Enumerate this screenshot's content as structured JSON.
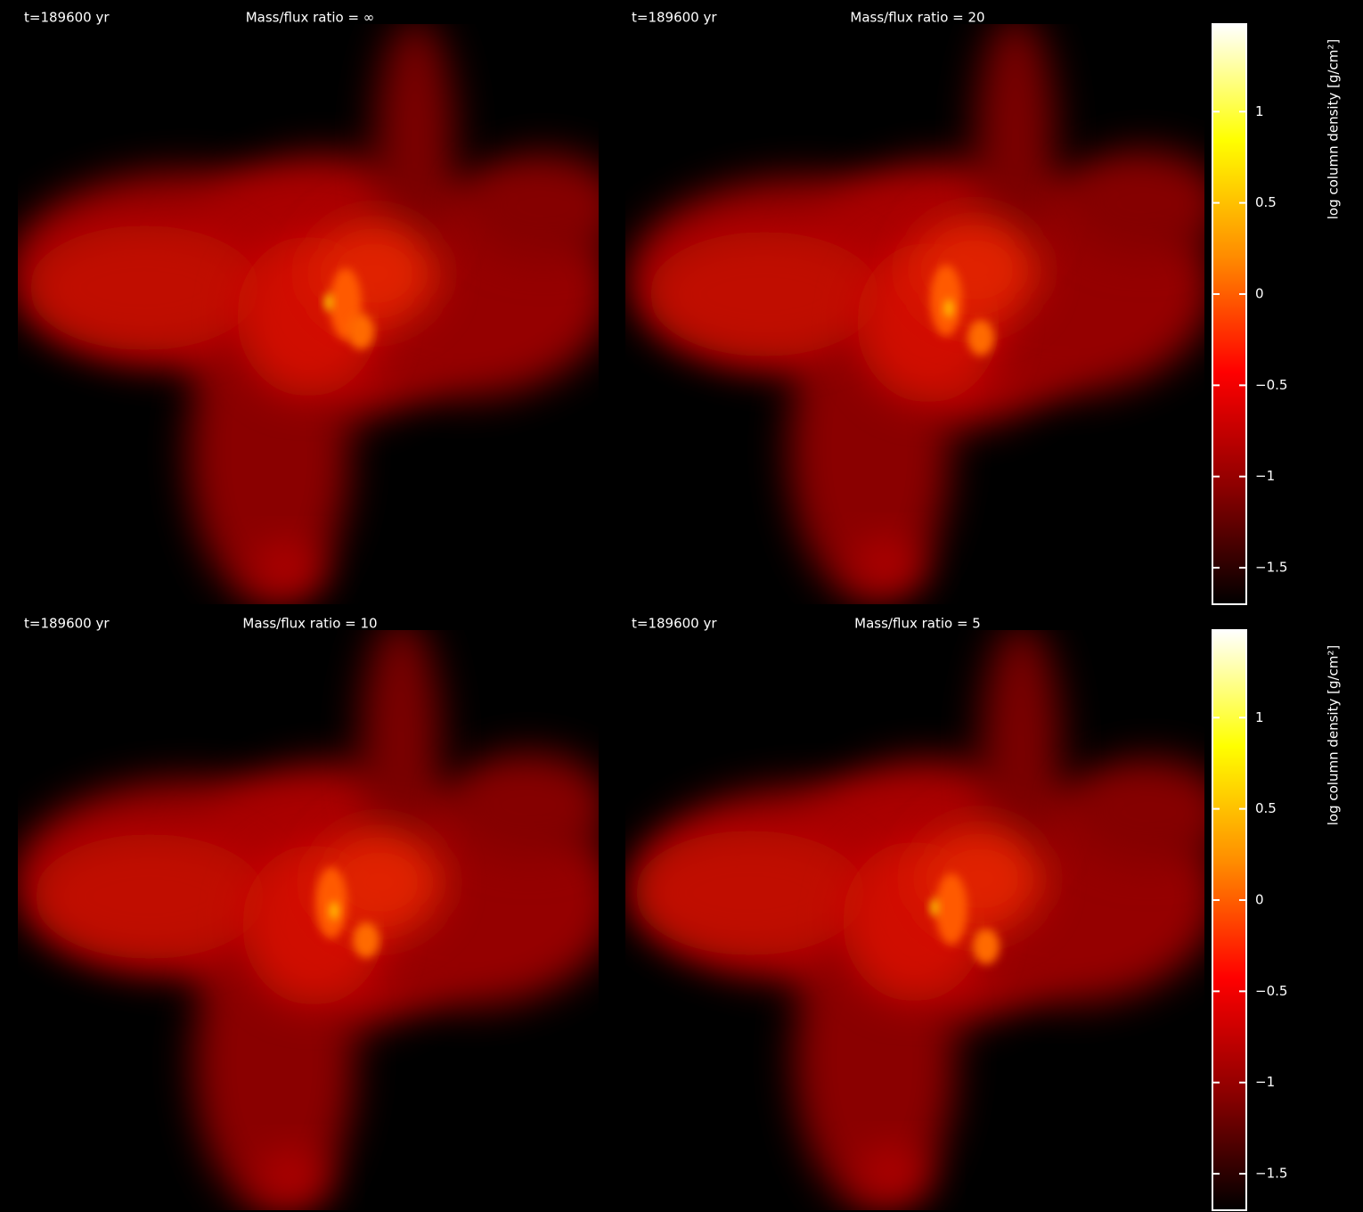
{
  "chart_data": [
    {
      "type": "heatmap",
      "time": "t=189600 yr",
      "title": "Mass/flux ratio = ∞"
    },
    {
      "type": "heatmap",
      "time": "t=189600 yr",
      "title": "Mass/flux ratio = 20",
      "colorbar": {
        "label": "log column density [g/cm²]",
        "lim": [
          -1.7,
          1.48
        ],
        "ticks": [
          {
            "value": -1.5,
            "label": "−1.5"
          },
          {
            "value": -1,
            "label": "−1"
          },
          {
            "value": -0.5,
            "label": "−0.5"
          },
          0,
          0.5,
          1
        ],
        "colormap": [
          "#000000",
          "#8b0000",
          "#ff0000",
          "#ff8c00",
          "#ffff00",
          "#ffffff"
        ]
      }
    },
    {
      "type": "heatmap",
      "time": "t=189600 yr",
      "title": "Mass/flux ratio = 10"
    },
    {
      "type": "heatmap",
      "time": "t=189600 yr",
      "title": "Mass/flux ratio = 5",
      "colorbar": {
        "label": "log column density [g/cm²]",
        "lim": [
          -1.7,
          1.48
        ],
        "ticks": [
          {
            "value": -1.5,
            "label": "−1.5"
          },
          {
            "value": -1,
            "label": "−1"
          },
          {
            "value": -0.5,
            "label": "−0.5"
          },
          0,
          0.5,
          1
        ],
        "colormap": [
          "#000000",
          "#8b0000",
          "#ff0000",
          "#ff8c00",
          "#ffff00",
          "#ffffff"
        ]
      }
    }
  ]
}
